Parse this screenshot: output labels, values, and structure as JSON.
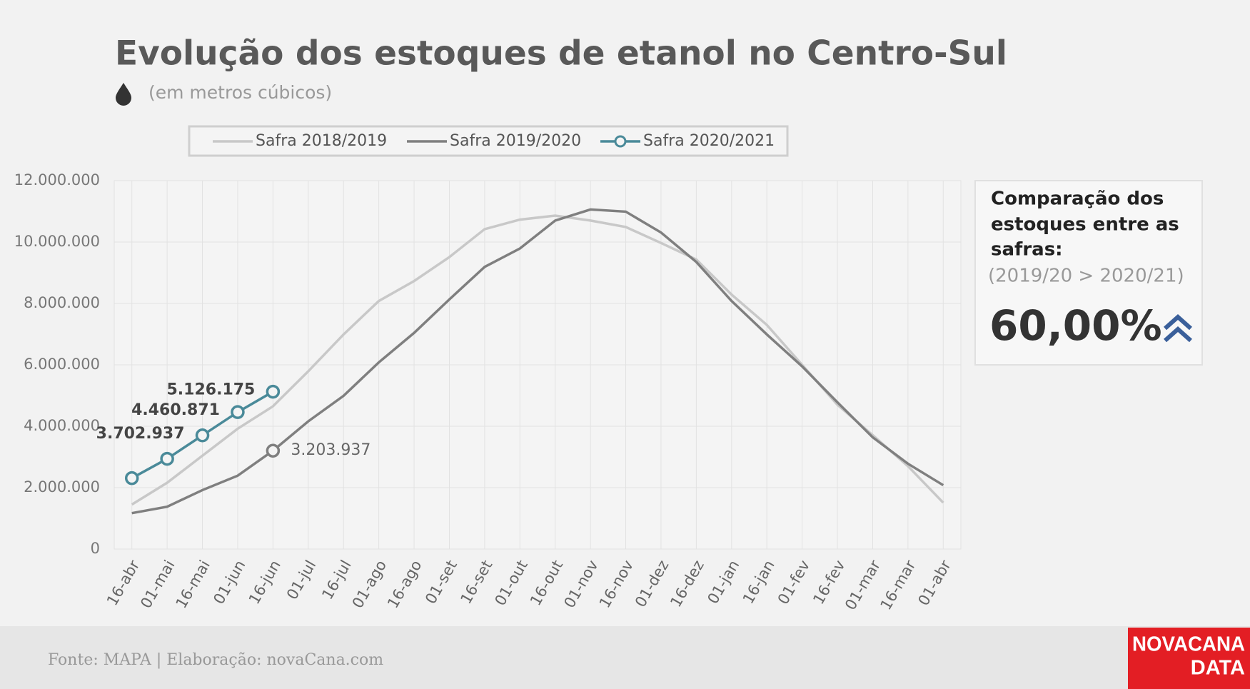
{
  "chart_data": {
    "type": "line",
    "title": "Evolução dos estoques de etanol no Centro-Sul",
    "subtitle": "(em metros cúbicos)",
    "categories": [
      "16-abr",
      "01-mai",
      "16-mai",
      "01-jun",
      "16-jun",
      "01-jul",
      "16-jul",
      "01-ago",
      "16-ago",
      "01-set",
      "16-set",
      "01-out",
      "16-out",
      "01-nov",
      "16-nov",
      "01-dez",
      "16-dez",
      "01-jan",
      "16-jan",
      "01-fev",
      "16-fev",
      "01-mar",
      "16-mar",
      "01-abr"
    ],
    "series": [
      {
        "name": "Safra 2018/2019",
        "color": "#c8c8c8",
        "values": [
          1450000,
          2160000,
          3040000,
          3920000,
          4650000,
          5790000,
          6990000,
          8080000,
          8730000,
          9510000,
          10420000,
          10730000,
          10860000,
          10700000,
          10490000,
          9970000,
          9430000,
          8290000,
          7300000,
          6000000,
          4700000,
          3710000,
          2700000,
          1510000
        ]
      },
      {
        "name": "Safra 2019/2020",
        "color": "#7f7f7f",
        "values": [
          1170000,
          1380000,
          1920000,
          2390000,
          3203937,
          4160000,
          4990000,
          6080000,
          7040000,
          8130000,
          9190000,
          9790000,
          10700000,
          11060000,
          10990000,
          10310000,
          9350000,
          8080000,
          6990000,
          5950000,
          4780000,
          3640000,
          2780000,
          2080000
        ],
        "value_labels": [
          null,
          null,
          null,
          null,
          "3.203.937",
          null,
          null,
          null,
          null,
          null,
          null,
          null,
          null,
          null,
          null,
          null,
          null,
          null,
          null,
          null,
          null,
          null,
          null,
          null
        ]
      },
      {
        "name": "Safra 2020/2021",
        "color": "#4a8a99",
        "markers": true,
        "values": [
          2310000,
          2940000,
          3702937,
          4460871,
          5126175,
          null,
          null,
          null,
          null,
          null,
          null,
          null,
          null,
          null,
          null,
          null,
          null,
          null,
          null,
          null,
          null,
          null,
          null,
          null
        ],
        "value_labels": [
          null,
          null,
          "3.702.937",
          "4.460.871",
          "5.126.175",
          null,
          null,
          null,
          null,
          null,
          null,
          null,
          null,
          null,
          null,
          null,
          null,
          null,
          null,
          null,
          null,
          null,
          null,
          null
        ]
      }
    ],
    "ylim": [
      0,
      12000000
    ],
    "yticks": [
      0,
      {
        "value": 2000000,
        "label": "2.000.000"
      },
      {
        "value": 4000000,
        "label": "4.000.000"
      },
      {
        "value": 6000000,
        "label": "6.000.000"
      },
      {
        "value": 8000000,
        "label": "8.000.000"
      },
      {
        "value": 10000000,
        "label": "10.000.000"
      },
      {
        "value": 12000000,
        "label": "12.000.000"
      }
    ],
    "grid": true,
    "legend": "top"
  },
  "comparison": {
    "heading": [
      "Comparação dos",
      "estoques entre as",
      "safras:"
    ],
    "note": "(2019/20 > 2020/21)",
    "value": "60,00%"
  },
  "footer": {
    "source": "Fonte: MAPA  | Elaboração: novaCana.com",
    "logo": [
      "NOVACANA",
      "DATA"
    ]
  }
}
